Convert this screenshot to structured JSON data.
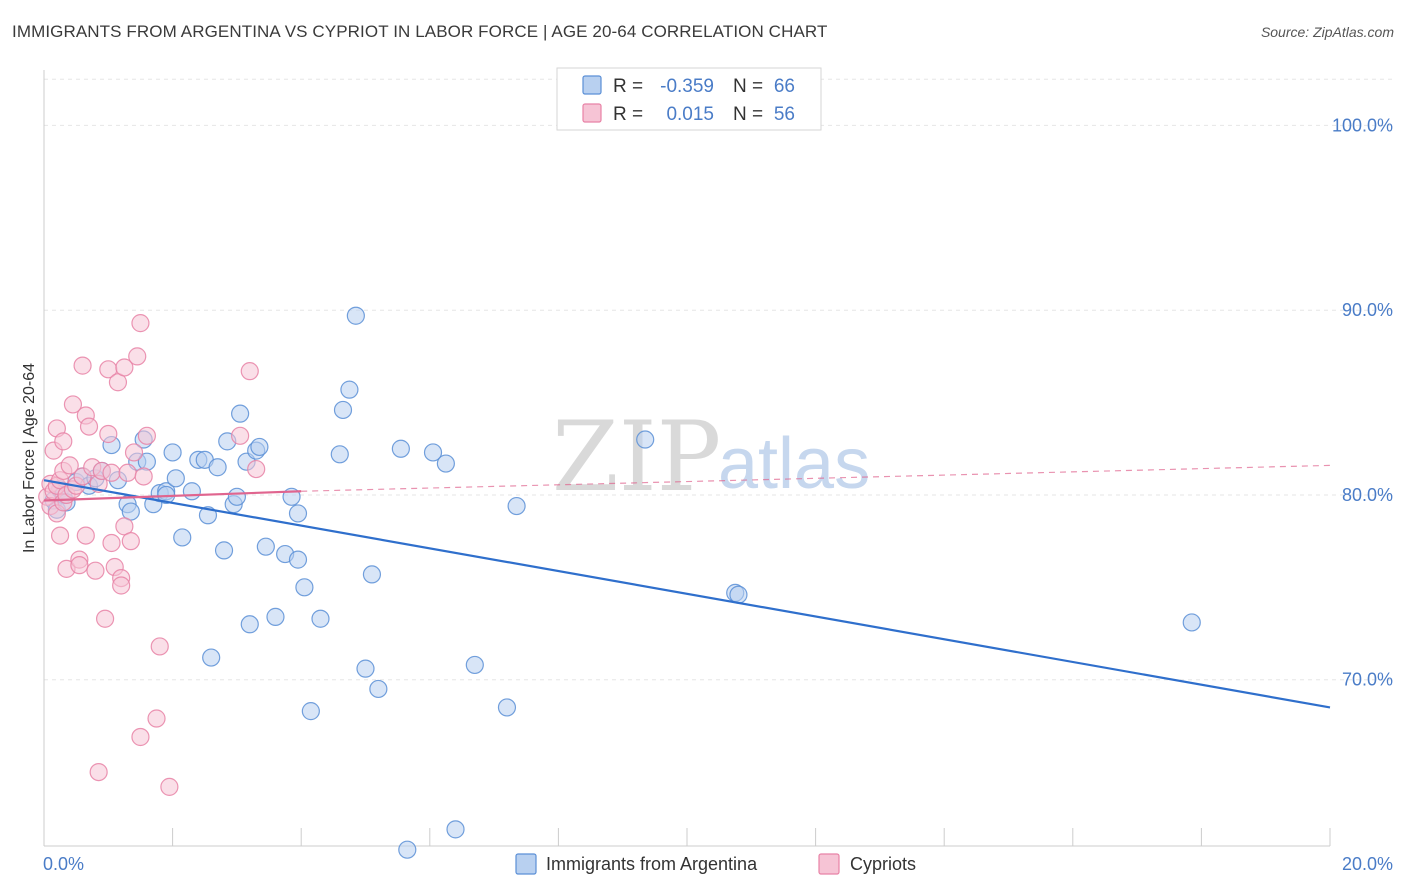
{
  "header": {
    "title": "IMMIGRANTS FROM ARGENTINA VS CYPRIOT IN LABOR FORCE | AGE 20-64 CORRELATION CHART",
    "source": "Source: ZipAtlas.com"
  },
  "watermark": {
    "zip": "ZIP",
    "atlas": "atlas"
  },
  "colors": {
    "blue": "#5b8fd6",
    "blue_fill": "#b8d0f0",
    "blue_line": "#2f6fcc",
    "pink": "#e882a6",
    "pink_fill": "#f6c4d5",
    "pink_line": "#e0658f",
    "axis_text": "#4a7cc7",
    "grid": "#e6e6e6"
  },
  "legend": {
    "r_label": "R =",
    "n_label": "N =",
    "items": [
      {
        "r": "-0.359",
        "n": "66"
      },
      {
        "r": "0.015",
        "n": "56"
      }
    ]
  },
  "chart_data": {
    "type": "scatter",
    "title": "IMMIGRANTS FROM ARGENTINA VS CYPRIOT IN LABOR FORCE | AGE 20-64 CORRELATION CHART",
    "xlabel": "",
    "ylabel": "In Labor Force | Age 20-64",
    "xlim": [
      0,
      20
    ],
    "ylim": [
      61,
      103
    ],
    "x_tick_labels": [
      "0.0%",
      "20.0%"
    ],
    "y_ticks": [
      70,
      80,
      90,
      100
    ],
    "y_tick_labels": [
      "70.0%",
      "80.0%",
      "90.0%",
      "100.0%"
    ],
    "grid": true,
    "legend_position": "top-center",
    "series": [
      {
        "name": "Immigrants from Argentina",
        "r": -0.359,
        "n": 66,
        "trend": {
          "x": [
            0.0,
            20.0
          ],
          "y": [
            80.8,
            68.5
          ]
        },
        "points": [
          [
            0.15,
            79.7
          ],
          [
            0.2,
            79.2
          ],
          [
            0.25,
            80.3
          ],
          [
            0.3,
            80.0
          ],
          [
            0.35,
            79.6
          ],
          [
            0.5,
            80.7
          ],
          [
            0.6,
            81.0
          ],
          [
            0.7,
            80.5
          ],
          [
            0.8,
            80.9
          ],
          [
            0.9,
            81.3
          ],
          [
            1.05,
            82.7
          ],
          [
            1.15,
            80.8
          ],
          [
            1.3,
            79.5
          ],
          [
            1.35,
            79.1
          ],
          [
            1.45,
            81.8
          ],
          [
            1.55,
            83.0
          ],
          [
            1.6,
            81.8
          ],
          [
            1.7,
            79.5
          ],
          [
            1.8,
            80.1
          ],
          [
            1.9,
            80.2
          ],
          [
            1.9,
            80.0
          ],
          [
            2.0,
            82.3
          ],
          [
            2.05,
            80.9
          ],
          [
            2.15,
            77.7
          ],
          [
            2.3,
            80.2
          ],
          [
            2.4,
            81.9
          ],
          [
            2.5,
            81.9
          ],
          [
            2.55,
            78.9
          ],
          [
            2.6,
            71.2
          ],
          [
            2.7,
            81.5
          ],
          [
            2.8,
            77.0
          ],
          [
            2.85,
            82.9
          ],
          [
            2.95,
            79.5
          ],
          [
            3.0,
            79.9
          ],
          [
            3.05,
            84.4
          ],
          [
            3.15,
            81.8
          ],
          [
            3.2,
            73.0
          ],
          [
            3.3,
            82.4
          ],
          [
            3.35,
            82.6
          ],
          [
            3.45,
            77.2
          ],
          [
            3.6,
            73.4
          ],
          [
            3.75,
            76.8
          ],
          [
            3.85,
            79.9
          ],
          [
            3.95,
            76.5
          ],
          [
            3.95,
            79.0
          ],
          [
            4.05,
            75.0
          ],
          [
            4.15,
            68.3
          ],
          [
            4.3,
            73.3
          ],
          [
            4.6,
            82.2
          ],
          [
            4.65,
            84.6
          ],
          [
            4.75,
            85.7
          ],
          [
            4.85,
            89.7
          ],
          [
            5.0,
            70.6
          ],
          [
            5.1,
            75.7
          ],
          [
            5.2,
            69.5
          ],
          [
            5.55,
            82.5
          ],
          [
            5.65,
            60.8
          ],
          [
            6.05,
            82.3
          ],
          [
            6.25,
            81.7
          ],
          [
            6.4,
            61.9
          ],
          [
            6.7,
            70.8
          ],
          [
            7.2,
            68.5
          ],
          [
            7.35,
            79.4
          ],
          [
            9.35,
            83.0
          ],
          [
            10.75,
            74.7
          ],
          [
            10.8,
            74.6
          ],
          [
            17.85,
            73.1
          ]
        ]
      },
      {
        "name": "Cypriots",
        "r": 0.015,
        "n": 56,
        "trend": {
          "x": [
            0.0,
            4.0
          ],
          "y": [
            79.7,
            80.2
          ],
          "dashed_to": [
            20.0,
            81.6
          ]
        },
        "points": [
          [
            0.05,
            79.9
          ],
          [
            0.1,
            80.6
          ],
          [
            0.1,
            79.4
          ],
          [
            0.15,
            80.2
          ],
          [
            0.15,
            82.4
          ],
          [
            0.2,
            83.6
          ],
          [
            0.2,
            80.5
          ],
          [
            0.2,
            79.0
          ],
          [
            0.25,
            80.8
          ],
          [
            0.25,
            77.8
          ],
          [
            0.3,
            81.3
          ],
          [
            0.3,
            82.9
          ],
          [
            0.3,
            79.6
          ],
          [
            0.35,
            80.0
          ],
          [
            0.35,
            76.0
          ],
          [
            0.4,
            81.6
          ],
          [
            0.45,
            84.9
          ],
          [
            0.45,
            80.3
          ],
          [
            0.5,
            80.5
          ],
          [
            0.55,
            76.5
          ],
          [
            0.55,
            76.2
          ],
          [
            0.6,
            87.0
          ],
          [
            0.6,
            81.0
          ],
          [
            0.65,
            77.8
          ],
          [
            0.65,
            84.3
          ],
          [
            0.7,
            83.7
          ],
          [
            0.75,
            81.5
          ],
          [
            0.8,
            75.9
          ],
          [
            0.85,
            80.6
          ],
          [
            0.85,
            65.0
          ],
          [
            0.9,
            81.3
          ],
          [
            0.95,
            73.3
          ],
          [
            1.0,
            86.8
          ],
          [
            1.0,
            83.3
          ],
          [
            1.05,
            77.4
          ],
          [
            1.05,
            81.2
          ],
          [
            1.1,
            76.1
          ],
          [
            1.15,
            86.1
          ],
          [
            1.2,
            75.5
          ],
          [
            1.2,
            75.1
          ],
          [
            1.25,
            78.3
          ],
          [
            1.25,
            86.9
          ],
          [
            1.3,
            81.2
          ],
          [
            1.35,
            77.5
          ],
          [
            1.4,
            82.3
          ],
          [
            1.45,
            87.5
          ],
          [
            1.5,
            89.3
          ],
          [
            1.5,
            66.9
          ],
          [
            1.55,
            81.0
          ],
          [
            1.6,
            83.2
          ],
          [
            1.75,
            67.9
          ],
          [
            1.8,
            71.8
          ],
          [
            1.95,
            64.2
          ],
          [
            3.05,
            83.2
          ],
          [
            3.2,
            86.7
          ],
          [
            3.3,
            81.4
          ]
        ]
      }
    ]
  },
  "bottom_legend": {
    "items": [
      "Immigrants from Argentina",
      "Cypriots"
    ]
  }
}
